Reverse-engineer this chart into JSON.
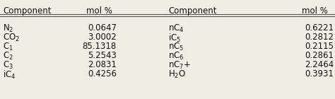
{
  "col_headers": [
    "Component",
    "mol %",
    "Component",
    "mol %"
  ],
  "left_components": [
    "N$_2$",
    "CO$_2$",
    "C$_1$",
    "C$_2$",
    "C$_3$",
    "iC$_4$"
  ],
  "left_values": [
    "0.0647",
    "3.0002",
    "85.1318",
    "5.2543",
    "2.0831",
    "0.4256"
  ],
  "right_components": [
    "nC$_4$",
    "iC$_5$",
    "nC$_5$",
    "nC$_6$",
    "nC$_7$+",
    "H$_2$O"
  ],
  "right_values": [
    "0.6221",
    "0.2812",
    "0.2115",
    "0.2861",
    "2.2464",
    "0.3931"
  ],
  "bg_color": "#f0ede4",
  "header_line_color": "#555555",
  "text_color": "#111111",
  "font_size": 8.5,
  "figsize": [
    4.74,
    1.4
  ],
  "dpi": 100
}
